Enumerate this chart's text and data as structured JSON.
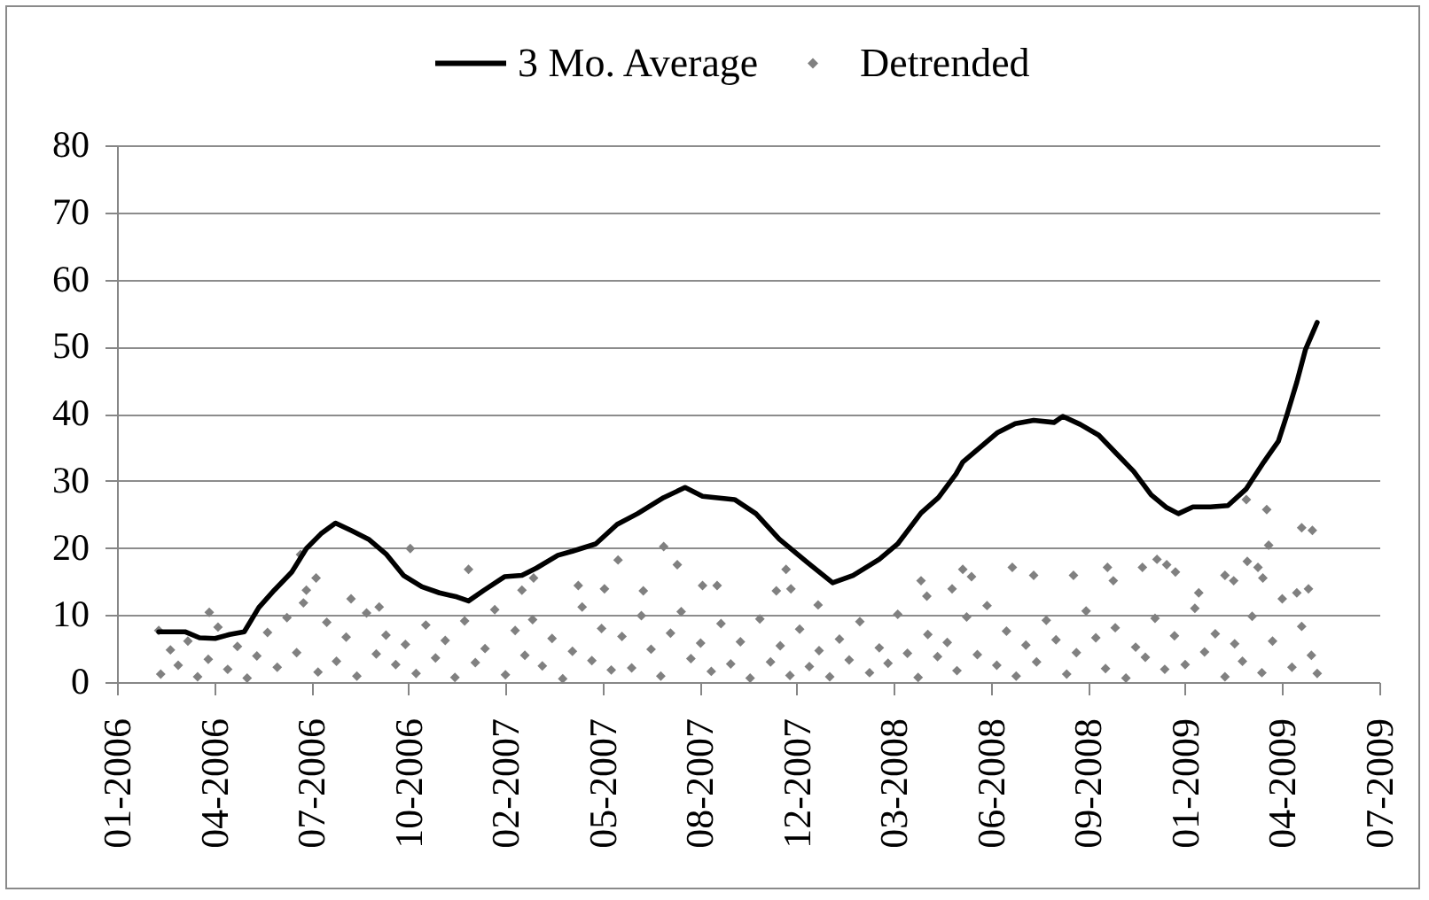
{
  "chart_data": {
    "type": "line",
    "legend": "top",
    "grid": "y",
    "xlim": [
      "2006-01-01",
      "2009-07-24"
    ],
    "xticks": [
      {
        "value": "2006-01-01",
        "label": "01-2006"
      },
      {
        "value": "2006-04-11",
        "label": "04-2006"
      },
      {
        "value": "2006-07-20",
        "label": "07-2006"
      },
      {
        "value": "2006-10-28",
        "label": "10-2006"
      },
      {
        "value": "2007-02-05",
        "label": "02-2007"
      },
      {
        "value": "2007-05-16",
        "label": "05-2007"
      },
      {
        "value": "2007-08-24",
        "label": "08-2007"
      },
      {
        "value": "2007-12-02",
        "label": "12-2007"
      },
      {
        "value": "2008-03-11",
        "label": "03-2008"
      },
      {
        "value": "2008-06-19",
        "label": "06-2008"
      },
      {
        "value": "2008-09-27",
        "label": "09-2008"
      },
      {
        "value": "2009-01-05",
        "label": "01-2009"
      },
      {
        "value": "2009-04-15",
        "label": "04-2009"
      },
      {
        "value": "2009-07-24",
        "label": "07-2009"
      }
    ],
    "ylim": [
      0,
      80
    ],
    "yticks": [
      0,
      10,
      20,
      30,
      40,
      50,
      60,
      70,
      80
    ],
    "series": [
      {
        "name": "3 Mo. Average",
        "type": "line",
        "color": "#000000",
        "x": [
          "2006-02-13",
          "2006-03-12",
          "2006-03-27",
          "2006-04-12",
          "2006-04-27",
          "2006-05-12",
          "2006-05-27",
          "2006-06-12",
          "2006-06-30",
          "2006-07-15",
          "2006-07-30",
          "2006-08-14",
          "2006-08-30",
          "2006-09-17",
          "2006-10-05",
          "2006-10-23",
          "2006-11-11",
          "2006-11-29",
          "2006-12-17",
          "2006-12-29",
          "2007-01-14",
          "2007-02-04",
          "2007-02-22",
          "2007-03-09",
          "2007-03-31",
          "2007-04-15",
          "2007-05-09",
          "2007-05-31",
          "2007-06-21",
          "2007-07-18",
          "2007-08-09",
          "2007-08-27",
          "2007-09-29",
          "2007-10-21",
          "2007-11-14",
          "2007-12-14",
          "2008-01-08",
          "2008-01-29",
          "2008-02-25",
          "2008-03-15",
          "2008-04-08",
          "2008-04-26",
          "2008-05-14",
          "2008-05-21",
          "2008-06-08",
          "2008-06-26",
          "2008-07-14",
          "2008-08-02",
          "2008-08-23",
          "2008-09-01",
          "2008-09-19",
          "2008-10-08",
          "2008-10-26",
          "2008-11-13",
          "2008-12-01",
          "2008-12-17",
          "2008-12-29",
          "2009-01-13",
          "2009-01-31",
          "2009-02-18",
          "2009-03-09",
          "2009-03-27",
          "2009-04-11",
          "2009-04-20",
          "2009-04-30",
          "2009-05-09",
          "2009-05-21"
        ],
        "values": [
          7.5,
          7.5,
          6.6,
          6.5,
          7.1,
          7.5,
          11.1,
          13.7,
          16.4,
          19.9,
          22.1,
          23.7,
          22.6,
          21.3,
          19.1,
          15.9,
          14.2,
          13.3,
          12.7,
          12.1,
          13.7,
          15.7,
          15.9,
          17.0,
          18.9,
          19.5,
          20.6,
          23.5,
          25.1,
          27.5,
          29.0,
          27.7,
          27.2,
          25.1,
          21.3,
          17.7,
          14.8,
          15.9,
          18.3,
          20.6,
          25.2,
          27.5,
          31.0,
          32.8,
          35.0,
          37.2,
          38.5,
          39.0,
          38.7,
          39.6,
          38.4,
          36.8,
          34.1,
          31.4,
          27.9,
          26.0,
          25.1,
          26.1,
          26.1,
          26.3,
          28.8,
          32.8,
          35.9,
          39.9,
          44.7,
          49.6,
          53.6
        ]
      },
      {
        "name": "Detrended",
        "type": "scatter",
        "color": "#808080",
        "marker": "diamond",
        "x": [
          "2006-02-15",
          "2006-02-25",
          "2006-03-05",
          "2006-03-15",
          "2006-03-25",
          "2006-04-05",
          "2006-04-15",
          "2006-04-25",
          "2006-05-05",
          "2006-05-15",
          "2006-05-25",
          "2006-06-05",
          "2006-06-15",
          "2006-06-25",
          "2006-07-05",
          "2006-07-12",
          "2006-07-27",
          "2006-08-05",
          "2006-08-15",
          "2006-08-25",
          "2006-09-05",
          "2006-09-15",
          "2006-09-25",
          "2006-10-05",
          "2006-10-15",
          "2006-10-25",
          "2006-11-05",
          "2006-11-15",
          "2006-11-25",
          "2006-12-05",
          "2006-12-15",
          "2006-12-25",
          "2007-01-05",
          "2007-01-15",
          "2007-01-25",
          "2007-02-05",
          "2007-02-15",
          "2007-02-25",
          "2007-03-05",
          "2007-03-15",
          "2007-03-25",
          "2007-04-05",
          "2007-04-15",
          "2007-04-25",
          "2007-05-05",
          "2007-05-15",
          "2007-05-25",
          "2007-06-05",
          "2007-06-15",
          "2007-06-25",
          "2007-07-05",
          "2007-07-15",
          "2007-07-25",
          "2007-08-05",
          "2007-08-15",
          "2007-08-25",
          "2007-09-05",
          "2007-09-15",
          "2007-09-25",
          "2007-10-05",
          "2007-10-15",
          "2007-10-25",
          "2007-11-05",
          "2007-11-15",
          "2007-11-25",
          "2007-12-05",
          "2007-12-15",
          "2007-12-25",
          "2008-01-05",
          "2008-01-15",
          "2008-01-25",
          "2008-02-05",
          "2008-02-15",
          "2008-02-25",
          "2008-03-05",
          "2008-03-15",
          "2008-03-25",
          "2008-04-05",
          "2008-04-15",
          "2008-04-25",
          "2008-05-05",
          "2008-05-15",
          "2008-05-25",
          "2008-06-05",
          "2008-06-15",
          "2008-06-25",
          "2008-07-05",
          "2008-07-15",
          "2008-07-25",
          "2008-08-05",
          "2008-08-15",
          "2008-08-25",
          "2008-09-05",
          "2008-09-15",
          "2008-09-25",
          "2008-10-05",
          "2008-10-15",
          "2008-10-25",
          "2008-11-05",
          "2008-11-15",
          "2008-11-25",
          "2008-12-05",
          "2008-12-15",
          "2008-12-25",
          "2009-01-05",
          "2009-01-15",
          "2009-01-25",
          "2009-02-05",
          "2009-02-15",
          "2009-02-25",
          "2009-03-05",
          "2009-03-15",
          "2009-03-25",
          "2009-04-05",
          "2009-04-15",
          "2009-04-25",
          "2009-05-05",
          "2009-05-15",
          "2009-05-21",
          "2006-02-13",
          "2006-04-06",
          "2006-07-09",
          "2006-07-15",
          "2006-07-25",
          "2006-08-30",
          "2006-09-28",
          "2006-10-30",
          "2006-12-29",
          "2007-02-22",
          "2007-03-06",
          "2007-04-21",
          "2007-05-18",
          "2007-06-01",
          "2007-06-27",
          "2007-07-18",
          "2007-08-01",
          "2007-08-27",
          "2007-09-11",
          "2007-11-11",
          "2007-11-21",
          "2007-11-26",
          "2007-12-24",
          "2008-04-08",
          "2008-04-14",
          "2008-05-10",
          "2008-05-21",
          "2008-05-30",
          "2008-07-11",
          "2008-08-02",
          "2008-09-12",
          "2008-10-17",
          "2008-10-23",
          "2008-11-22",
          "2008-12-07",
          "2008-12-17",
          "2008-12-26",
          "2009-01-19",
          "2009-02-15",
          "2009-02-24",
          "2009-03-09",
          "2009-03-10",
          "2009-03-21",
          "2009-03-26",
          "2009-03-30",
          "2009-04-01",
          "2009-04-30",
          "2009-05-05",
          "2009-05-12",
          "2009-05-16"
        ],
        "values": [
          1.2,
          4.8,
          2.5,
          6.1,
          0.8,
          3.4,
          8.2,
          1.9,
          5.3,
          0.6,
          3.9,
          7.4,
          2.2,
          9.6,
          4.4,
          11.8,
          1.5,
          8.9,
          3.1,
          6.7,
          0.9,
          10.3,
          4.2,
          7.0,
          2.6,
          5.6,
          1.3,
          8.5,
          3.6,
          6.2,
          0.7,
          9.1,
          2.9,
          5.0,
          10.8,
          1.1,
          7.7,
          4.0,
          9.3,
          2.4,
          6.5,
          0.5,
          4.6,
          11.2,
          3.2,
          8.0,
          1.8,
          6.8,
          2.1,
          9.9,
          4.9,
          0.9,
          7.3,
          10.5,
          3.5,
          5.8,
          1.6,
          8.7,
          2.7,
          6.0,
          0.6,
          9.4,
          3.0,
          5.4,
          1.0,
          7.9,
          2.3,
          4.7,
          0.8,
          6.4,
          3.3,
          9.0,
          1.4,
          5.1,
          2.8,
          10.1,
          4.3,
          0.7,
          7.1,
          3.8,
          5.9,
          1.7,
          9.7,
          4.1,
          11.4,
          2.5,
          7.6,
          0.9,
          5.5,
          3.0,
          9.2,
          6.3,
          1.2,
          4.4,
          10.6,
          6.6,
          2.0,
          8.1,
          0.6,
          5.2,
          3.7,
          9.5,
          1.9,
          6.9,
          2.6,
          11.0,
          4.5,
          7.2,
          0.8,
          5.7,
          3.1,
          9.8,
          1.4,
          6.1,
          12.4,
          2.2,
          8.3,
          4.0,
          1.3,
          7.7,
          10.4,
          19.0,
          13.7,
          15.5,
          12.4,
          11.2,
          19.9,
          16.8,
          13.7,
          15.5,
          14.4,
          13.9,
          18.2,
          13.6,
          20.2,
          17.5,
          14.4,
          14.4,
          13.6,
          16.8,
          13.9,
          11.5,
          15.1,
          12.8,
          13.9,
          16.8,
          15.7,
          17.1,
          15.9,
          15.9,
          17.1,
          15.1,
          17.1,
          18.3,
          17.5,
          16.4,
          13.3,
          15.9,
          15.1,
          27.2,
          18.0,
          17.1,
          15.5,
          25.7,
          20.4,
          13.3,
          23.0,
          13.9,
          22.6
        ]
      }
    ]
  }
}
